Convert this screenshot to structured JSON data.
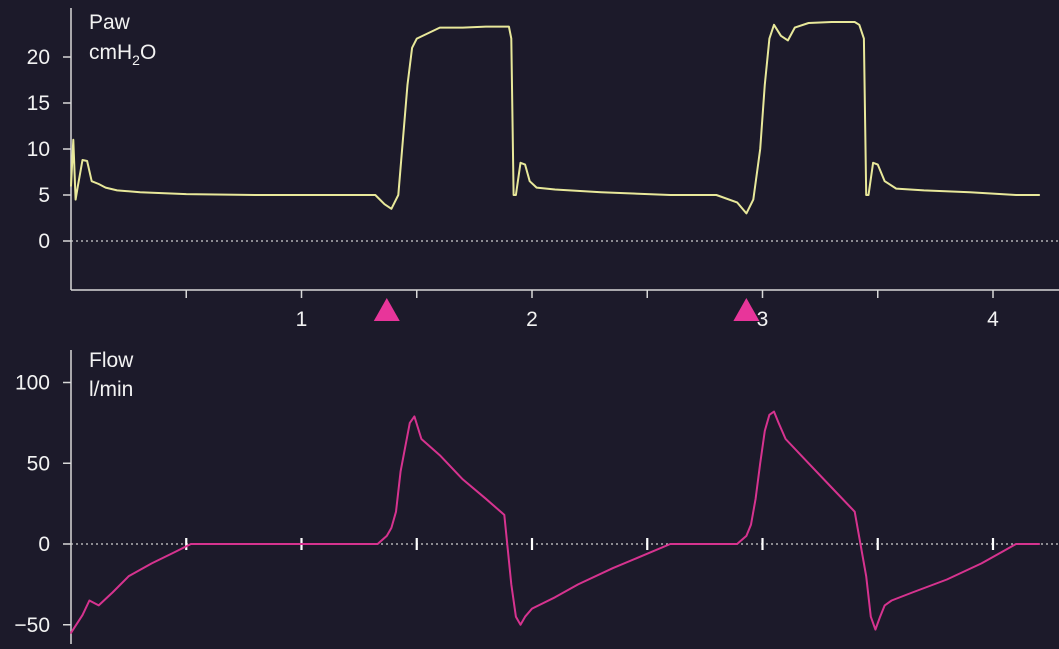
{
  "colors": {
    "background": "#1c1a2a",
    "axis": "#d8d8d8",
    "text": "#f2f2f2",
    "paw_trace": "#e8e89a",
    "flow_trace": "#d6338f",
    "trigger_marker": "#e8359a"
  },
  "chart_data": [
    {
      "type": "line",
      "panel": "paw",
      "title_line1": "Paw",
      "title_line2_main": "cmH",
      "title_line2_sub": "2",
      "title_line2_end": "O",
      "ylim": [
        -5,
        25
      ],
      "yticks": [
        0,
        5,
        10,
        15,
        20
      ],
      "ytick_labels": [
        "0",
        "5",
        "10",
        "15",
        "20"
      ],
      "xlim": [
        0,
        4.2
      ],
      "xticks_minor": [
        0.5,
        1,
        1.5,
        2,
        2.5,
        3,
        3.5,
        4
      ],
      "xtick_labels": [
        {
          "x": 1,
          "label": "1"
        },
        {
          "x": 2,
          "label": "2"
        },
        {
          "x": 3,
          "label": "3"
        },
        {
          "x": 4,
          "label": "4"
        }
      ],
      "trigger_markers_x": [
        1.37,
        2.93
      ],
      "series": [
        {
          "x": [
            0,
            0.01,
            0.02,
            0.03,
            0.05,
            0.07,
            0.09,
            0.12,
            0.15,
            0.2,
            0.3,
            0.5,
            0.8,
            1.0,
            1.2,
            1.32,
            1.36,
            1.39,
            1.42,
            1.44,
            1.46,
            1.48,
            1.5,
            1.55,
            1.6,
            1.7,
            1.8,
            1.9,
            1.91,
            1.92,
            1.93,
            1.95,
            1.97,
            1.99,
            2.02,
            2.1,
            2.3,
            2.6,
            2.8,
            2.89,
            2.93,
            2.96,
            2.99,
            3.01,
            3.03,
            3.05,
            3.08,
            3.11,
            3.14,
            3.2,
            3.3,
            3.4,
            3.42,
            3.44,
            3.45,
            3.46,
            3.48,
            3.5,
            3.53,
            3.58,
            3.7,
            3.9,
            4.1,
            4.2
          ],
          "y": [
            6,
            11,
            4.5,
            6,
            8.8,
            8.7,
            6.5,
            6.2,
            5.8,
            5.5,
            5.3,
            5.1,
            5.0,
            5.0,
            5.0,
            5.0,
            4.0,
            3.5,
            5.0,
            11,
            17,
            21,
            22,
            22.6,
            23.2,
            23.2,
            23.3,
            23.3,
            22,
            5.0,
            5.0,
            8.5,
            8.3,
            6.5,
            5.8,
            5.6,
            5.3,
            5.0,
            5.0,
            4.2,
            3.0,
            4.5,
            10,
            17,
            22,
            23.5,
            22.3,
            21.8,
            23.2,
            23.7,
            23.8,
            23.8,
            23.5,
            22,
            5.0,
            5.0,
            8.5,
            8.3,
            6.5,
            5.7,
            5.5,
            5.3,
            5.0,
            5.0
          ]
        }
      ]
    },
    {
      "type": "line",
      "panel": "flow",
      "title_line1": "Flow",
      "title_line2": "l/min",
      "ylim": [
        -55,
        120
      ],
      "yticks": [
        -50,
        0,
        50,
        100
      ],
      "ytick_labels": [
        "−50",
        "0",
        "50",
        "100"
      ],
      "xlim": [
        0,
        4.2
      ],
      "xticks_minor": [
        0.5,
        1,
        1.5,
        2,
        2.5,
        3,
        3.5,
        4
      ],
      "series": [
        {
          "x": [
            0,
            0.05,
            0.08,
            0.12,
            0.18,
            0.25,
            0.35,
            0.45,
            0.52,
            0.6,
            0.9,
            1.2,
            1.33,
            1.37,
            1.39,
            1.41,
            1.43,
            1.45,
            1.47,
            1.49,
            1.52,
            1.6,
            1.7,
            1.8,
            1.88,
            1.91,
            1.93,
            1.95,
            1.97,
            2.0,
            2.1,
            2.2,
            2.35,
            2.5,
            2.6,
            2.8,
            2.89,
            2.93,
            2.95,
            2.97,
            2.99,
            3.01,
            3.03,
            3.05,
            3.07,
            3.1,
            3.2,
            3.3,
            3.4,
            3.45,
            3.47,
            3.49,
            3.51,
            3.53,
            3.56,
            3.65,
            3.8,
            3.95,
            4.05,
            4.1,
            4.2
          ],
          "y": [
            -55,
            -44,
            -35,
            -38,
            -30,
            -20,
            -12,
            -5,
            0,
            0,
            0,
            0,
            0,
            5,
            10,
            20,
            45,
            60,
            75,
            79,
            65,
            55,
            40,
            28,
            18,
            -25,
            -45,
            -50,
            -45,
            -40,
            -33,
            -25,
            -15,
            -6,
            0,
            0,
            0,
            5,
            12,
            28,
            50,
            70,
            80,
            82,
            75,
            65,
            50,
            35,
            20,
            -20,
            -45,
            -53,
            -45,
            -38,
            -35,
            -30,
            -22,
            -12,
            -4,
            0,
            0
          ]
        }
      ]
    }
  ]
}
